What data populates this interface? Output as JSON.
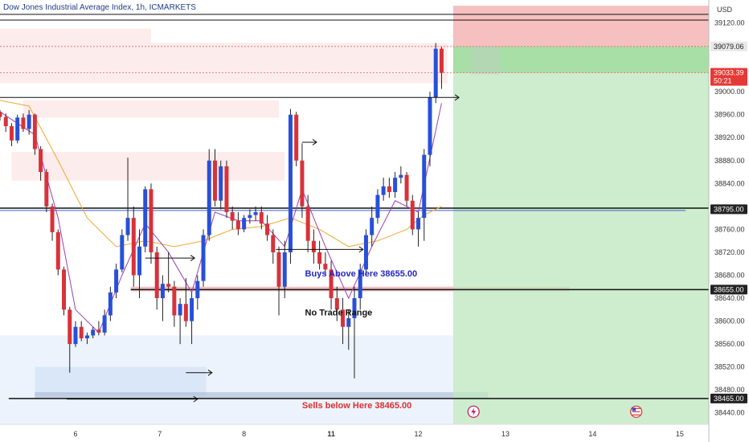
{
  "header": {
    "title": "Dow Jones Industrial Average Index, 1h, ICMARKETS",
    "currency": "USD"
  },
  "chart_data": {
    "type": "candlestick",
    "y_range": [
      38420,
      39160
    ],
    "y_ticks": [
      39120,
      39000,
      38960,
      38920,
      38880,
      38840,
      38760,
      38720,
      38680,
      38640,
      38600,
      38560,
      38520,
      38480,
      38440
    ],
    "x_ticks": [
      {
        "label": "6",
        "t": 13
      },
      {
        "label": "7",
        "t": 27.5
      },
      {
        "label": "8",
        "t": 42
      },
      {
        "label": "11",
        "t": 57
      },
      {
        "label": "12",
        "t": 72
      },
      {
        "label": "13",
        "t": 87
      },
      {
        "label": "14",
        "t": 102
      },
      {
        "label": "15",
        "t": 117
      }
    ],
    "x_range": [
      0,
      122
    ],
    "price_tags": [
      {
        "label": "39079.06",
        "value": 39079,
        "style": "neutral"
      },
      {
        "label": "39033.39",
        "value": 39033,
        "style": "current",
        "sub": "50:21"
      },
      {
        "label": "38795.00",
        "value": 38795,
        "style": "level"
      },
      {
        "label": "38655.00",
        "value": 38655,
        "style": "level"
      },
      {
        "label": "38465.00",
        "value": 38465,
        "style": "level"
      }
    ],
    "annotations": [
      {
        "text": "Buys Above Here 38655.00",
        "t": 52.5,
        "value": 38678,
        "color": "#2626c2"
      },
      {
        "text": "No Trade Range",
        "t": 52.5,
        "value": 38610,
        "color": "#111111"
      },
      {
        "text": "Sells below Here 38465.00",
        "t": 52,
        "value": 38448,
        "color": "#d93030"
      }
    ],
    "levels": [
      {
        "value": 39135,
        "t0": 0,
        "t1": 122,
        "color": "#111",
        "width": 1
      },
      {
        "value": 39125,
        "t0": 0,
        "t1": 122,
        "color": "#111",
        "width": 1
      },
      {
        "value": 38797,
        "t0": 0,
        "t1": 122,
        "color": "#111",
        "width": 1.5
      },
      {
        "value": 38793,
        "t0": 0,
        "t1": 118,
        "color": "#3a5fcd",
        "width": 1
      },
      {
        "value": 38655,
        "t0": 22.5,
        "t1": 122,
        "color": "#111",
        "width": 1.5
      },
      {
        "value": 38465,
        "t0": 1.5,
        "t1": 122,
        "color": "#111",
        "width": 1.5
      },
      {
        "value": 39079,
        "t0": 0,
        "t1": 122,
        "color": "#e06666",
        "width": 0.8,
        "dash": true
      },
      {
        "value": 39033,
        "t0": 0,
        "t1": 122,
        "color": "#e06666",
        "width": 0.8,
        "dash": true
      }
    ],
    "zones": [
      {
        "t0": 0,
        "t1": 26,
        "v0": 39110,
        "v1": 39085,
        "color": "rgba(248,200,200,0.35)"
      },
      {
        "t0": 0,
        "t1": 77,
        "v0": 39085,
        "v1": 39015,
        "color": "rgba(248,200,200,0.35)"
      },
      {
        "t0": 4,
        "t1": 48,
        "v0": 38985,
        "v1": 38955,
        "color": "rgba(248,200,200,0.35)"
      },
      {
        "t0": 2,
        "t1": 49,
        "v0": 38895,
        "v1": 38845,
        "color": "rgba(248,200,200,0.35)"
      },
      {
        "t0": 0,
        "t1": 78,
        "v0": 38575,
        "v1": 38420,
        "color": "rgba(200,222,248,0.35)"
      },
      {
        "t0": 6,
        "t1": 35.5,
        "v0": 38520,
        "v1": 38470,
        "color": "rgba(190,212,240,0.4)"
      },
      {
        "t0": 6,
        "t1": 84,
        "v0": 38476,
        "v1": 38466,
        "color": "rgba(170,185,210,0.6)"
      },
      {
        "t0": 22.5,
        "t1": 98,
        "v0": 38660,
        "v1": 38652,
        "color": "rgba(230,150,150,0.6)"
      },
      {
        "t0": 78,
        "t1": 122,
        "v0": 39150,
        "v1": 39079,
        "color": "rgba(240,140,140,0.55)"
      },
      {
        "t0": 78,
        "t1": 122,
        "v0": 39079,
        "v1": 39033,
        "color": "rgba(130,210,130,0.7)"
      },
      {
        "t0": 78,
        "t1": 122,
        "v0": 39033,
        "v1": 38420,
        "color": "rgba(190,230,190,0.75)"
      },
      {
        "t0": 81,
        "t1": 86,
        "v0": 39079,
        "v1": 39030,
        "color": "rgba(200,200,200,0.35)"
      }
    ],
    "arrows": [
      {
        "t0": 0,
        "t1": 79,
        "value": 38990
      },
      {
        "t0": 25,
        "t1": 33.5,
        "value": 38710
      },
      {
        "t0": 47.5,
        "t1": 62.5,
        "value": 38725
      },
      {
        "t0": 52,
        "t1": 54.5,
        "value": 38912
      },
      {
        "t0": 32,
        "t1": 36.5,
        "value": 38510
      },
      {
        "t0": 11.5,
        "t1": 34,
        "value": 38464
      }
    ],
    "icons": [
      {
        "name": "flash-icon",
        "t": 81.5,
        "value": 38442,
        "color": "#c2185b"
      },
      {
        "name": "us-flag-icon",
        "t": 109.5,
        "value": 38442,
        "color": "#d93030"
      }
    ],
    "candles": [
      [
        0,
        38965,
        38968,
        38950,
        38956
      ],
      [
        1,
        38956,
        38962,
        38930,
        38940
      ],
      [
        2,
        38940,
        38945,
        38905,
        38915
      ],
      [
        3,
        38915,
        38960,
        38910,
        38955
      ],
      [
        4,
        38955,
        38962,
        38930,
        38935
      ],
      [
        5,
        38935,
        38968,
        38925,
        38960
      ],
      [
        6,
        38960,
        38962,
        38890,
        38900
      ],
      [
        7,
        38900,
        38905,
        38845,
        38860
      ],
      [
        8,
        38860,
        38865,
        38790,
        38800
      ],
      [
        9,
        38800,
        38805,
        38740,
        38755
      ],
      [
        10,
        38755,
        38760,
        38680,
        38690
      ],
      [
        11,
        38690,
        38695,
        38610,
        38620
      ],
      [
        12,
        38620,
        38625,
        38510,
        38560
      ],
      [
        13,
        38560,
        38600,
        38555,
        38590
      ],
      [
        14,
        38590,
        38600,
        38565,
        38570
      ],
      [
        15,
        38570,
        38580,
        38560,
        38575
      ],
      [
        16,
        38575,
        38590,
        38570,
        38585
      ],
      [
        17,
        38585,
        38600,
        38575,
        38580
      ],
      [
        18,
        38580,
        38620,
        38575,
        38610
      ],
      [
        19,
        38610,
        38660,
        38600,
        38650
      ],
      [
        20,
        38650,
        38700,
        38640,
        38690
      ],
      [
        21,
        38690,
        38760,
        38685,
        38750
      ],
      [
        22,
        38750,
        38885,
        38740,
        38780
      ],
      [
        23,
        38780,
        38800,
        38660,
        38680
      ],
      [
        24,
        38680,
        38760,
        38640,
        38730
      ],
      [
        25,
        38730,
        38835,
        38720,
        38830
      ],
      [
        26,
        38830,
        38840,
        38700,
        38720
      ],
      [
        27,
        38720,
        38730,
        38620,
        38640
      ],
      [
        28,
        38640,
        38680,
        38600,
        38665
      ],
      [
        29,
        38665,
        38720,
        38650,
        38660
      ],
      [
        30,
        38660,
        38670,
        38590,
        38610
      ],
      [
        31,
        38610,
        38640,
        38560,
        38630
      ],
      [
        32,
        38630,
        38675,
        38590,
        38600
      ],
      [
        33,
        38600,
        38650,
        38560,
        38640
      ],
      [
        34,
        38640,
        38680,
        38620,
        38670
      ],
      [
        35,
        38670,
        38760,
        38660,
        38750
      ],
      [
        36,
        38750,
        38900,
        38740,
        38880
      ],
      [
        37,
        38880,
        38900,
        38800,
        38810
      ],
      [
        38,
        38810,
        38880,
        38795,
        38870
      ],
      [
        39,
        38870,
        38880,
        38780,
        38790
      ],
      [
        40,
        38790,
        38800,
        38760,
        38775
      ],
      [
        41,
        38775,
        38790,
        38750,
        38760
      ],
      [
        42,
        38760,
        38785,
        38755,
        38780
      ],
      [
        43,
        38780,
        38795,
        38770,
        38785
      ],
      [
        44,
        38785,
        38800,
        38775,
        38790
      ],
      [
        45,
        38790,
        38800,
        38760,
        38770
      ],
      [
        46,
        38770,
        38785,
        38740,
        38750
      ],
      [
        47,
        38750,
        38760,
        38700,
        38720
      ],
      [
        48,
        38720,
        38730,
        38610,
        38660
      ],
      [
        49,
        38660,
        38740,
        38640,
        38720
      ],
      [
        50,
        38720,
        38970,
        38700,
        38960
      ],
      [
        51,
        38960,
        38965,
        38870,
        38880
      ],
      [
        52,
        38880,
        38910,
        38780,
        38800
      ],
      [
        53,
        38800,
        38820,
        38720,
        38740
      ],
      [
        54,
        38740,
        38760,
        38700,
        38720
      ],
      [
        55,
        38720,
        38740,
        38690,
        38700
      ],
      [
        56,
        38700,
        38720,
        38680,
        38690
      ],
      [
        57,
        38690,
        38705,
        38620,
        38640
      ],
      [
        58,
        38640,
        38660,
        38600,
        38620
      ],
      [
        59,
        38620,
        38640,
        38560,
        38590
      ],
      [
        60,
        38590,
        38620,
        38550,
        38605
      ],
      [
        61,
        38605,
        38660,
        38500,
        38640
      ],
      [
        62,
        38640,
        38700,
        38620,
        38690
      ],
      [
        63,
        38690,
        38760,
        38680,
        38750
      ],
      [
        64,
        38750,
        38800,
        38730,
        38780
      ],
      [
        65,
        38780,
        38830,
        38770,
        38820
      ],
      [
        66,
        38820,
        38850,
        38810,
        38835
      ],
      [
        67,
        38835,
        38850,
        38815,
        38825
      ],
      [
        68,
        38825,
        38860,
        38815,
        38850
      ],
      [
        69,
        38850,
        38870,
        38840,
        38855
      ],
      [
        70,
        38855,
        38860,
        38800,
        38810
      ],
      [
        71,
        38810,
        38820,
        38750,
        38760
      ],
      [
        72,
        38760,
        38790,
        38730,
        38780
      ],
      [
        73,
        38780,
        38900,
        38740,
        38890
      ],
      [
        74,
        38890,
        39000,
        38870,
        38990
      ],
      [
        75,
        38990,
        39085,
        38980,
        39075
      ],
      [
        76,
        39075,
        39078,
        39005,
        39033
      ]
    ],
    "ema_fast": [
      [
        0,
        38965
      ],
      [
        6,
        38925
      ],
      [
        10,
        38780
      ],
      [
        13,
        38620
      ],
      [
        17,
        38580
      ],
      [
        21,
        38680
      ],
      [
        25,
        38770
      ],
      [
        29,
        38720
      ],
      [
        33,
        38650
      ],
      [
        37,
        38790
      ],
      [
        41,
        38775
      ],
      [
        45,
        38775
      ],
      [
        49,
        38730
      ],
      [
        52,
        38830
      ],
      [
        56,
        38730
      ],
      [
        60,
        38640
      ],
      [
        64,
        38730
      ],
      [
        68,
        38810
      ],
      [
        72,
        38790
      ],
      [
        76,
        38980
      ]
    ],
    "ema_slow": [
      [
        0,
        38985
      ],
      [
        5,
        38975
      ],
      [
        10,
        38880
      ],
      [
        15,
        38780
      ],
      [
        20,
        38730
      ],
      [
        25,
        38740
      ],
      [
        30,
        38730
      ],
      [
        35,
        38740
      ],
      [
        40,
        38760
      ],
      [
        45,
        38765
      ],
      [
        50,
        38780
      ],
      [
        55,
        38760
      ],
      [
        60,
        38730
      ],
      [
        65,
        38740
      ],
      [
        70,
        38760
      ],
      [
        73,
        38785
      ],
      [
        76,
        38800
      ]
    ]
  }
}
